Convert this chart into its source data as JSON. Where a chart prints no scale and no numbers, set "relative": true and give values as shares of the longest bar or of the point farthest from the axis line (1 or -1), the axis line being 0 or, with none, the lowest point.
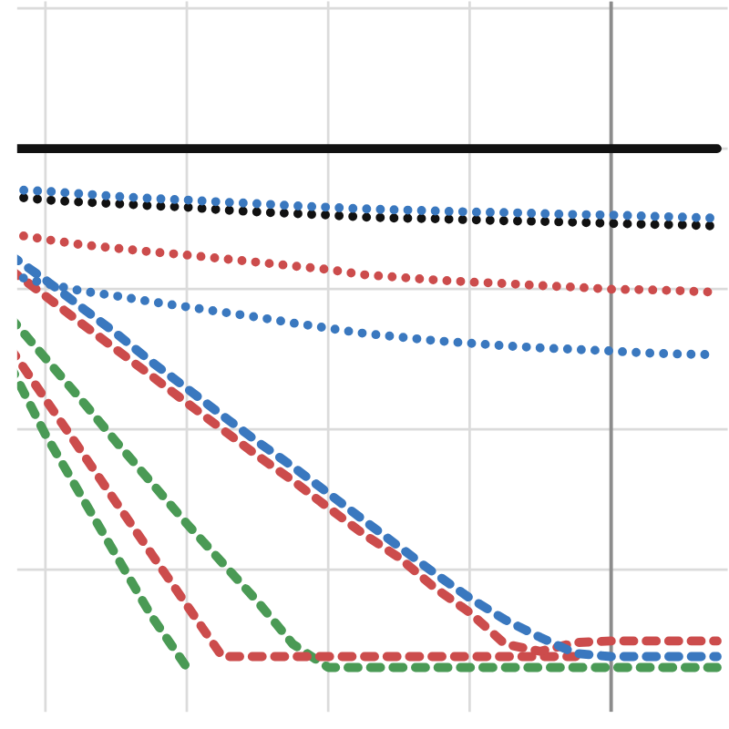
{
  "chart_data": {
    "type": "line",
    "relative": true,
    "grid": true,
    "marker": "none",
    "categories": [
      null,
      null,
      null,
      null,
      null,
      null,
      null,
      null,
      null,
      null,
      null,
      null,
      null,
      null,
      null,
      null,
      null,
      null,
      null,
      null,
      null
    ],
    "series": [
      {
        "color": "#4a9a55",
        "line_style": "dashed",
        "values": [
          0.582,
          0.449,
          0.332,
          0.216,
          0.099,
          0,
          null,
          null,
          null,
          null,
          null,
          null,
          null,
          null,
          null,
          null,
          null,
          null,
          null,
          null,
          null
        ]
      },
      {
        "color": "#4a9a55",
        "line_style": "dashed",
        "values": [
          0.675,
          0.596,
          0.517,
          0.435,
          0.356,
          0.277,
          0.202,
          0.127,
          0.045,
          0,
          0,
          0,
          0,
          0,
          0,
          0,
          0,
          0,
          0,
          0,
          0
        ]
      },
      {
        "color": "#cc4c4c",
        "line_style": "dashed",
        "values": [
          0.616,
          0.517,
          0.418,
          0.318,
          0.219,
          0.12,
          0.021,
          0.021,
          0.021,
          0.021,
          0.021,
          0.021,
          0.021,
          0.021,
          0.021,
          0.021,
          0.021,
          null,
          null,
          null,
          null
        ]
      },
      {
        "color": "#cc4c4c",
        "line_style": "dashed",
        "values": [
          0.767,
          0.716,
          0.664,
          0.613,
          0.562,
          0.51,
          0.459,
          0.408,
          0.36,
          0.308,
          0.257,
          0.212,
          0.154,
          0.106,
          0.045,
          0.031,
          0.048,
          0.051,
          0.051,
          0.051,
          0.051
        ]
      },
      {
        "color": "#3a78bf",
        "line_style": "dashed",
        "values": [
          0.795,
          0.747,
          0.695,
          0.644,
          0.589,
          0.538,
          0.486,
          0.435,
          0.387,
          0.336,
          0.284,
          0.233,
          0.182,
          0.134,
          0.092,
          0.058,
          0.027,
          0.021,
          0.021,
          0.021,
          0.021
        ]
      },
      {
        "color": "#3a78bf",
        "line_style": "dotted",
        "values": [
          0.757,
          0.74,
          0.726,
          0.716,
          0.705,
          0.695,
          0.685,
          0.675,
          0.664,
          0.654,
          0.644,
          0.637,
          0.63,
          0.625,
          0.62,
          0.616,
          0.613,
          0.61,
          0.606,
          0.604,
          0.603
        ]
      },
      {
        "color": "#cc4c4c",
        "line_style": "dotted",
        "values": [
          0.836,
          0.825,
          0.815,
          0.808,
          0.801,
          0.795,
          0.788,
          0.781,
          0.774,
          0.767,
          0.757,
          0.752,
          0.747,
          0.743,
          0.74,
          0.736,
          0.733,
          0.729,
          0.728,
          0.726,
          0.723
        ]
      },
      {
        "color": "#111111",
        "line_style": "dotted",
        "values": [
          0.908,
          0.901,
          0.897,
          0.894,
          0.89,
          0.887,
          0.882,
          0.878,
          0.875,
          0.872,
          0.868,
          0.866,
          0.865,
          0.863,
          0.861,
          0.86,
          0.858,
          0.856,
          0.854,
          0.853,
          0.851
        ]
      },
      {
        "color": "#3a78bf",
        "line_style": "dotted",
        "values": [
          0.921,
          0.918,
          0.913,
          0.908,
          0.904,
          0.901,
          0.897,
          0.894,
          0.89,
          0.887,
          0.884,
          0.882,
          0.88,
          0.878,
          0.877,
          0.875,
          0.873,
          0.872,
          0.87,
          0.868,
          0.866
        ]
      },
      {
        "color": "#111111",
        "line_style": "solid",
        "values": [
          1,
          1,
          1,
          1,
          1,
          1,
          1,
          1,
          1,
          1,
          1,
          1,
          1,
          1,
          1,
          1,
          1,
          1,
          1,
          1,
          1
        ]
      }
    ]
  }
}
